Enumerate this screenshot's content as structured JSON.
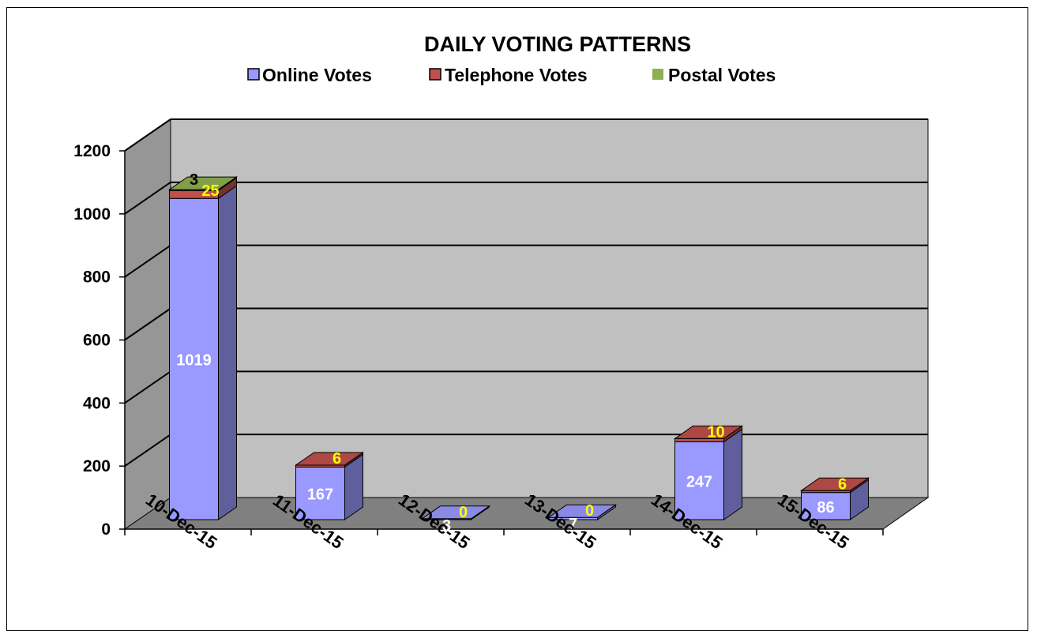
{
  "chart_data": {
    "type": "bar",
    "stacked": true,
    "three_d": true,
    "title": "DAILY VOTING PATTERNS",
    "categories": [
      "10-Dec-15",
      "11-Dec-15",
      "12-Dec-15",
      "13-Dec-15",
      "14-Dec-15",
      "15-Dec-15"
    ],
    "series": [
      {
        "name": "Online Votes",
        "values": [
          1019,
          167,
          3,
          7,
          247,
          86
        ],
        "color": "#9999ff",
        "label_color": "#ffffff",
        "labels": [
          "1019",
          "167",
          "3",
          "7",
          "247",
          "86"
        ]
      },
      {
        "name": "Telephone Votes",
        "values": [
          25,
          6,
          0,
          0,
          10,
          6
        ],
        "color": "#c0504d",
        "label_color": "#ffff00",
        "labels": [
          "25",
          "6",
          "0",
          "0",
          "10",
          "6"
        ]
      },
      {
        "name": "Postal Votes",
        "values": [
          3,
          0,
          0,
          0,
          0,
          0
        ],
        "color": "#8fb050",
        "label_color": "#000000",
        "labels": [
          "3",
          "",
          "",
          "",
          "",
          ""
        ]
      }
    ],
    "ylim": [
      0,
      1200
    ],
    "yticks": [
      "0",
      "200",
      "400",
      "600",
      "800",
      "1000",
      "1200"
    ],
    "xlabel": "",
    "ylabel": "",
    "grid": true,
    "legend_position": "top",
    "colors": {
      "wall": "#c0c0c0",
      "side_wall": "#969696",
      "floor": "#808080"
    }
  }
}
